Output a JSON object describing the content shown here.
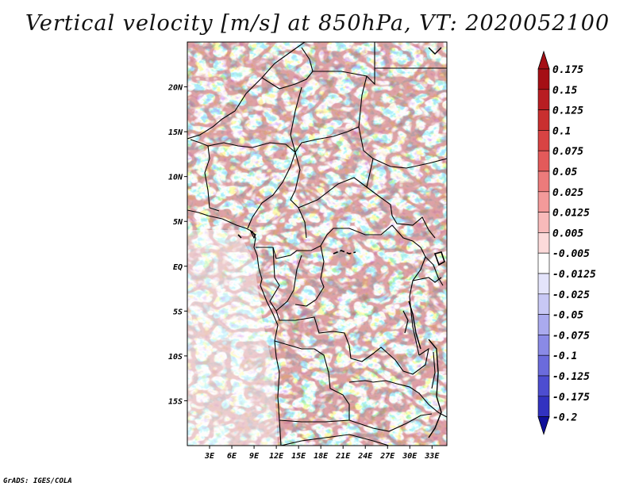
{
  "title": "Vertical velocity [m/s] at 850hPa, VT: 2020052100",
  "credit": "GrADS: IGES/COLA",
  "map": {
    "lon_range": [
      0,
      35
    ],
    "lat_range": [
      -20,
      25
    ],
    "lon_ticks": [
      {
        "lon": 3,
        "label": "3E"
      },
      {
        "lon": 6,
        "label": "6E"
      },
      {
        "lon": 9,
        "label": "9E"
      },
      {
        "lon": 12,
        "label": "12E"
      },
      {
        "lon": 15,
        "label": "15E"
      },
      {
        "lon": 18,
        "label": "18E"
      },
      {
        "lon": 21,
        "label": "21E"
      },
      {
        "lon": 24,
        "label": "24E"
      },
      {
        "lon": 27,
        "label": "27E"
      },
      {
        "lon": 30,
        "label": "30E"
      },
      {
        "lon": 33,
        "label": "33E"
      }
    ],
    "lat_ticks": [
      {
        "lat": 20,
        "label": "20N"
      },
      {
        "lat": 15,
        "label": "15N"
      },
      {
        "lat": 10,
        "label": "10N"
      },
      {
        "lat": 5,
        "label": "5N"
      },
      {
        "lat": 0,
        "label": "EQ"
      },
      {
        "lat": -5,
        "label": "5S"
      },
      {
        "lat": -10,
        "label": "10S"
      },
      {
        "lat": -15,
        "label": "15S"
      }
    ]
  },
  "colorbar": {
    "entries": [
      {
        "label": "0.175",
        "color": "#a50f15"
      },
      {
        "label": "0.15",
        "color": "#b81d22"
      },
      {
        "label": "0.125",
        "color": "#c92f2f"
      },
      {
        "label": "0.1",
        "color": "#d84343"
      },
      {
        "label": "0.075",
        "color": "#e35a5a"
      },
      {
        "label": "0.05",
        "color": "#ec7b7b"
      },
      {
        "label": "0.025",
        "color": "#f39a9a"
      },
      {
        "label": "0.0125",
        "color": "#f8baba"
      },
      {
        "label": "0.005",
        "color": "#fcdada"
      },
      {
        "label": "-0.005",
        "color": "#ffffff"
      },
      {
        "label": "-0.0125",
        "color": "#e4e4fb"
      },
      {
        "label": "-0.025",
        "color": "#c8c8f5"
      },
      {
        "label": "-0.05",
        "color": "#aaaaee"
      },
      {
        "label": "-0.075",
        "color": "#8a8ae6"
      },
      {
        "label": "-0.1",
        "color": "#6b6bdc"
      },
      {
        "label": "-0.125",
        "color": "#4d4dd0"
      },
      {
        "label": "-0.175",
        "color": "#3232c0"
      },
      {
        "label": "-0.2",
        "color": "#1a1aa8"
      }
    ],
    "top_color": "#a50f15",
    "bottom_color": "#10109a"
  }
}
